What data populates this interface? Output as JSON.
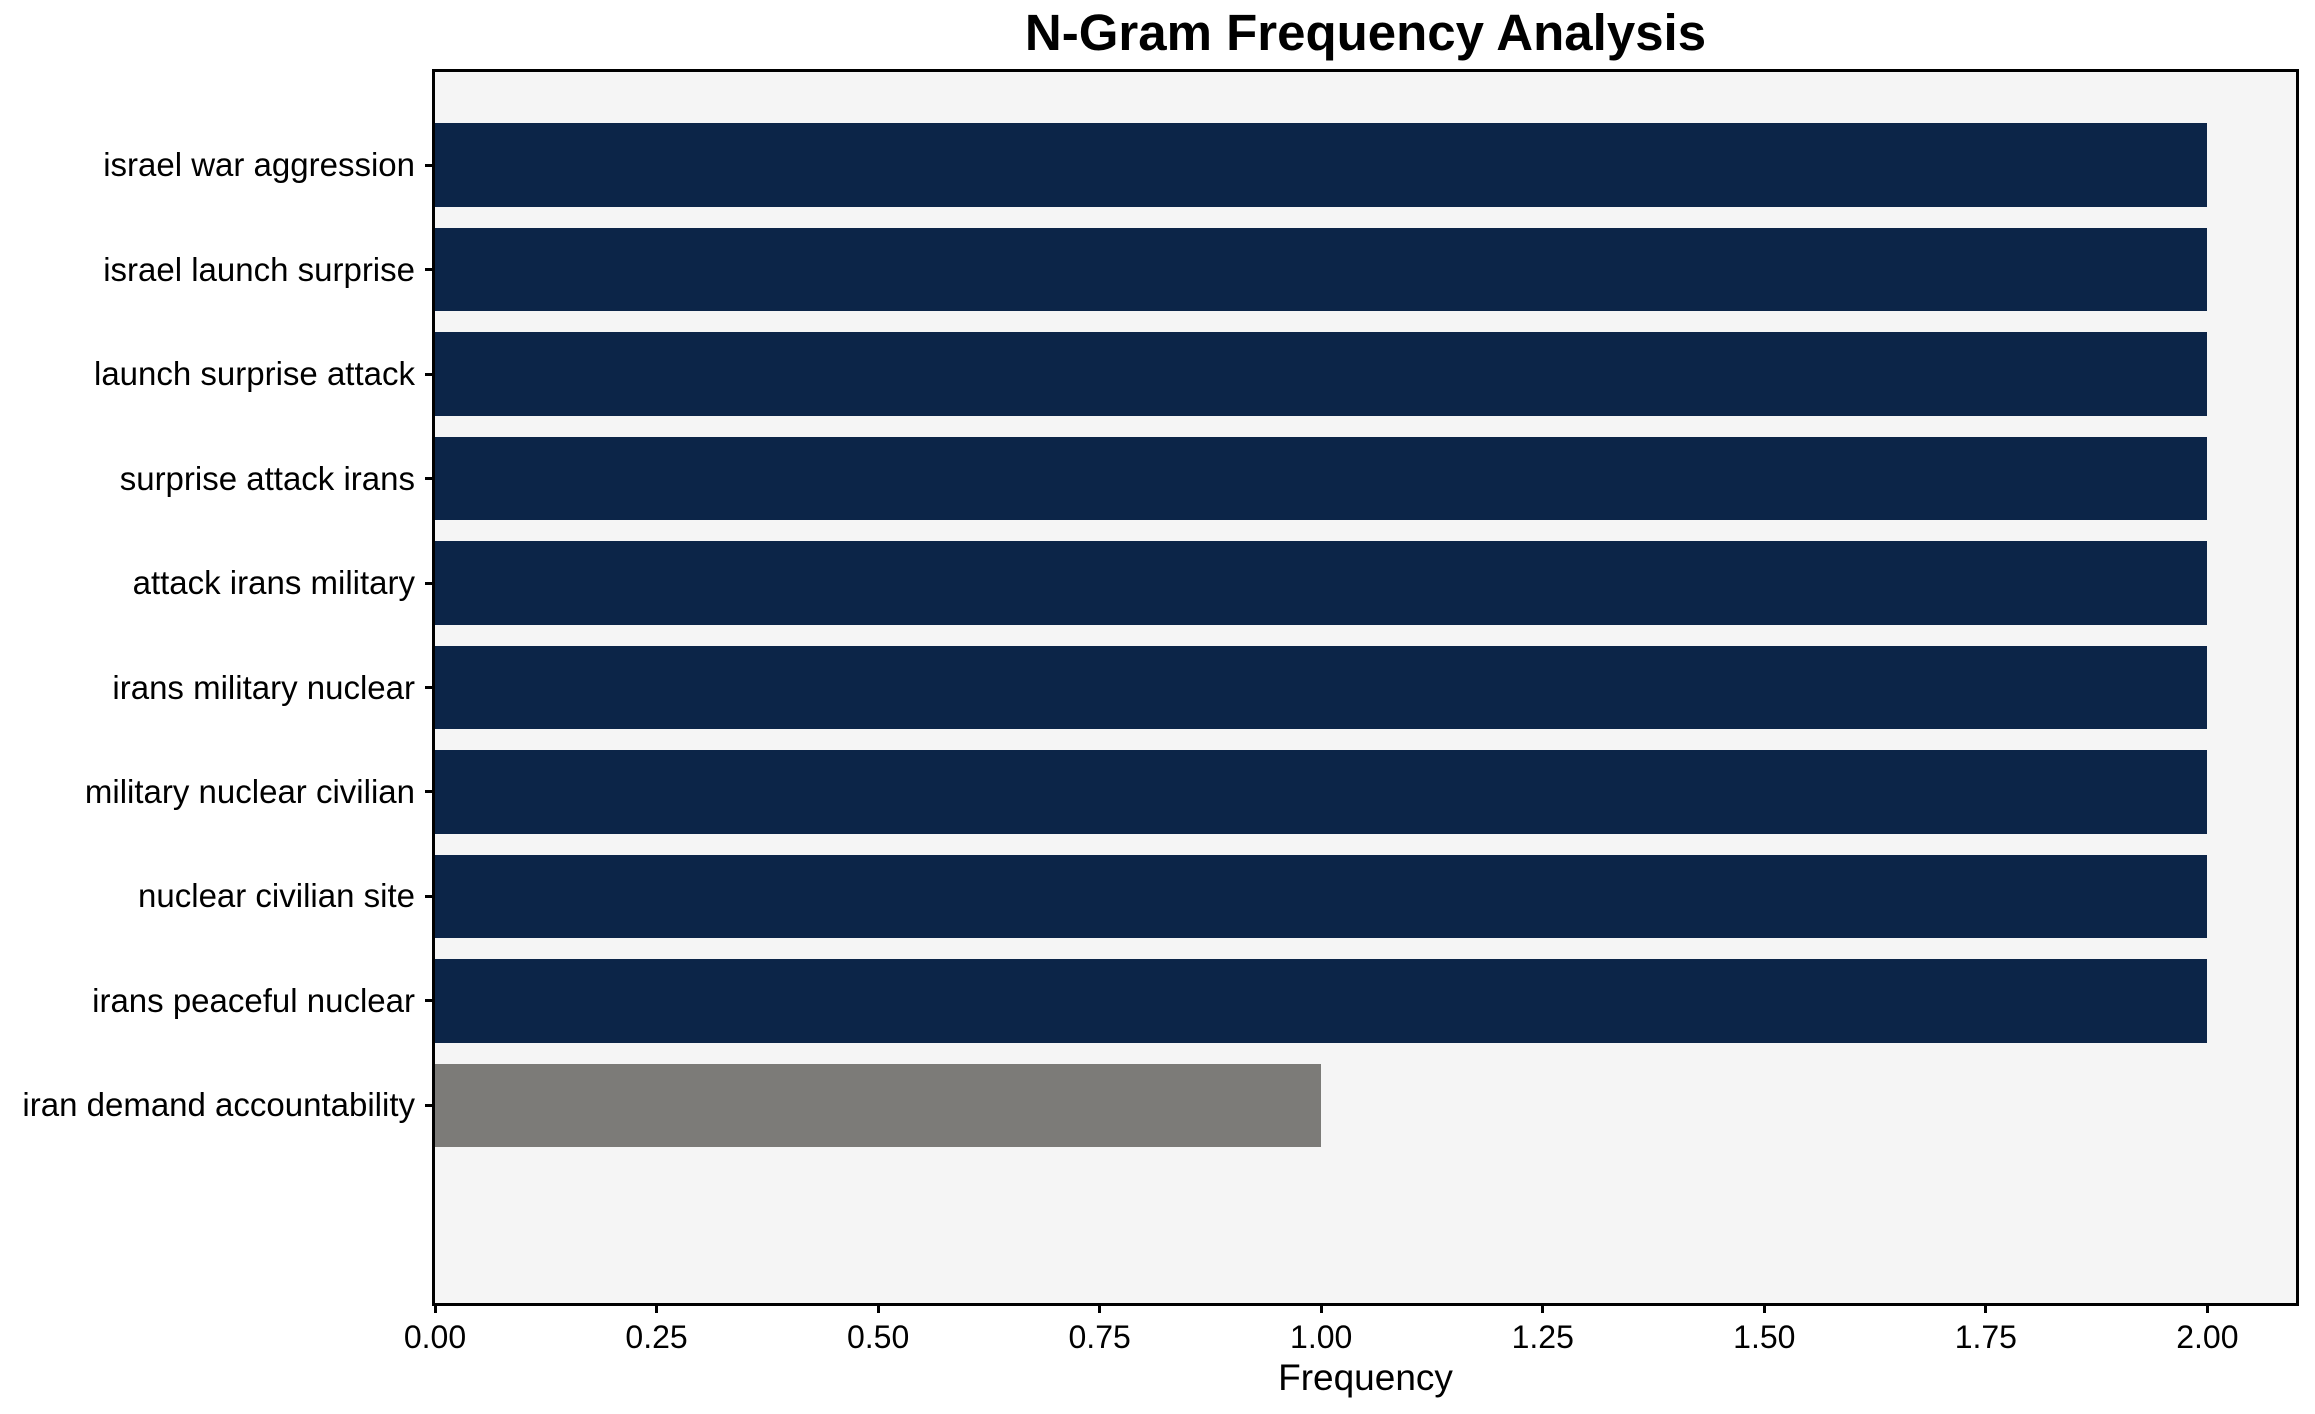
{
  "chart_data": {
    "type": "bar",
    "orientation": "horizontal",
    "title": "N-Gram Frequency Analysis",
    "xlabel": "Frequency",
    "ylabel": "",
    "categories": [
      "israel war aggression",
      "israel launch surprise",
      "launch surprise attack",
      "surprise attack irans",
      "attack irans military",
      "irans military nuclear",
      "military nuclear civilian",
      "nuclear civilian site",
      "irans peaceful nuclear",
      "iran demand accountability"
    ],
    "values": [
      2,
      2,
      2,
      2,
      2,
      2,
      2,
      2,
      2,
      1
    ],
    "bar_colors": [
      "#0c2548",
      "#0c2548",
      "#0c2548",
      "#0c2548",
      "#0c2548",
      "#0c2548",
      "#0c2548",
      "#0c2548",
      "#0c2548",
      "#7c7b78"
    ],
    "xlim": [
      0,
      2.1
    ],
    "xticks": [
      0,
      0.25,
      0.5,
      0.75,
      1.0,
      1.25,
      1.5,
      1.75,
      2.0
    ],
    "xtick_labels": [
      "0.00",
      "0.25",
      "0.50",
      "0.75",
      "1.00",
      "1.25",
      "1.50",
      "1.75",
      "2.00"
    ],
    "bar_width_fraction": 0.8,
    "grid": false,
    "legend": false,
    "plot_background": "#f5f5f5",
    "spine_color": "#000000"
  }
}
